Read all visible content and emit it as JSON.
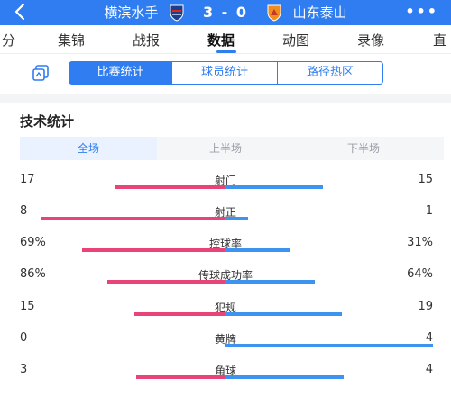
{
  "header": {
    "home_team": "横滨水手",
    "score": "3 - 0",
    "away_team": "山东泰山",
    "more": "•••"
  },
  "tabs": [
    {
      "label": "分",
      "active": false
    },
    {
      "label": "集锦",
      "active": false
    },
    {
      "label": "战报",
      "active": false
    },
    {
      "label": "数据",
      "active": true
    },
    {
      "label": "动图",
      "active": false
    },
    {
      "label": "录像",
      "active": false
    },
    {
      "label": "直",
      "active": false
    }
  ],
  "segments": [
    {
      "label": "比赛统计",
      "active": true
    },
    {
      "label": "球员统计",
      "active": false
    },
    {
      "label": "路径热区",
      "active": false
    }
  ],
  "section_title": "技术统计",
  "periods": [
    {
      "label": "全场",
      "active": true
    },
    {
      "label": "上半场",
      "active": false
    },
    {
      "label": "下半场",
      "active": false
    }
  ],
  "colors": {
    "accent": "#2f7df0",
    "home_bar": "#e94377",
    "away_bar": "#3d93f0"
  },
  "stats": [
    {
      "name": "射门",
      "home": "17",
      "away": "15",
      "home_frac": 0.53,
      "away_frac": 0.47
    },
    {
      "name": "射正",
      "home": "8",
      "away": "1",
      "home_frac": 0.89,
      "away_frac": 0.11
    },
    {
      "name": "控球率",
      "home": "69%",
      "away": "31%",
      "home_frac": 0.69,
      "away_frac": 0.31
    },
    {
      "name": "传球成功率",
      "home": "86%",
      "away": "64%",
      "home_frac": 0.57,
      "away_frac": 0.43
    },
    {
      "name": "犯规",
      "home": "15",
      "away": "19",
      "home_frac": 0.44,
      "away_frac": 0.56
    },
    {
      "name": "黄牌",
      "home": "0",
      "away": "4",
      "home_frac": 0.0,
      "away_frac": 1.0
    },
    {
      "name": "角球",
      "home": "3",
      "away": "4",
      "home_frac": 0.43,
      "away_frac": 0.57
    }
  ]
}
